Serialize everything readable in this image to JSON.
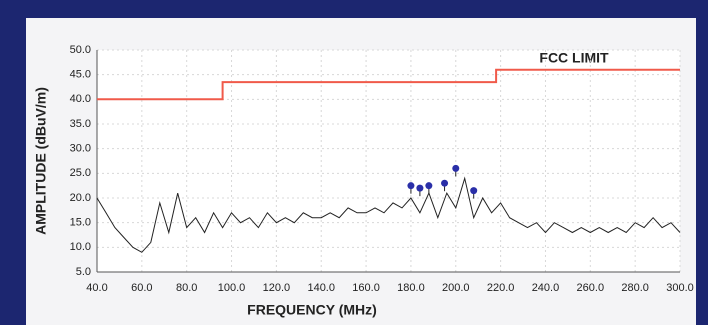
{
  "chart_data": {
    "type": "line",
    "ylabel": "AMPLITUDE (dBuV/m)",
    "xlabel": "FREQUENCY (MHz)",
    "annotation": "FCC LIMIT",
    "xlim": [
      40,
      300
    ],
    "xticks": [
      {
        "value": 40,
        "label": "40.0"
      },
      {
        "value": 60,
        "label": "60.0"
      },
      {
        "value": 80,
        "label": "80.0"
      },
      {
        "value": 100,
        "label": "100.0"
      },
      {
        "value": 120,
        "label": "120.0"
      },
      {
        "value": 140,
        "label": "140.0"
      },
      {
        "value": 160,
        "label": "160.0"
      },
      {
        "value": 180,
        "label": "180.0"
      },
      {
        "value": 200,
        "label": "200.0"
      },
      {
        "value": 220,
        "label": "220.0"
      },
      {
        "value": 240,
        "label": "240.0"
      },
      {
        "value": 260,
        "label": "260.0"
      },
      {
        "value": 280,
        "label": "280.0"
      },
      {
        "value": 300,
        "label": "300.0"
      }
    ],
    "ylim": [
      5,
      50
    ],
    "yticks": [
      {
        "value": 5,
        "label": "5.0"
      },
      {
        "value": 10,
        "label": "10.0"
      },
      {
        "value": 15,
        "label": "15.0"
      },
      {
        "value": 20,
        "label": "20.0"
      },
      {
        "value": 25,
        "label": "25.0"
      },
      {
        "value": 30,
        "label": "30.0"
      },
      {
        "value": 35,
        "label": "35.0"
      },
      {
        "value": 40,
        "label": "40.0"
      },
      {
        "value": 45,
        "label": "45.0"
      },
      {
        "value": 50,
        "label": "50.0"
      }
    ],
    "grid": true,
    "series": [
      {
        "kind": "line",
        "color": "#222222",
        "x": [
          40,
          44,
          48,
          52,
          56,
          60,
          64,
          68,
          72,
          76,
          80,
          84,
          88,
          92,
          96,
          100,
          104,
          108,
          112,
          116,
          120,
          124,
          128,
          132,
          136,
          140,
          144,
          148,
          152,
          156,
          160,
          164,
          168,
          172,
          176,
          180,
          184,
          188,
          192,
          196,
          200,
          204,
          208,
          212,
          216,
          220,
          224,
          228,
          232,
          236,
          240,
          244,
          248,
          252,
          256,
          260,
          264,
          268,
          272,
          276,
          280,
          284,
          288,
          292,
          296,
          300
        ],
        "values": [
          20,
          17,
          14,
          12,
          10,
          9,
          11,
          19,
          13,
          21,
          14,
          16,
          13,
          17,
          14,
          17,
          15,
          16,
          14,
          17,
          15,
          16,
          15,
          17,
          16,
          16,
          17,
          16,
          18,
          17,
          17,
          18,
          17,
          19,
          18,
          20,
          17,
          21,
          16,
          21,
          18,
          24,
          16,
          20,
          17,
          19,
          16,
          15,
          14,
          15,
          13,
          15,
          14,
          13,
          14,
          13,
          14,
          13,
          14,
          13,
          15,
          14,
          16,
          14,
          15,
          13
        ]
      },
      {
        "kind": "line",
        "color": "#f05a4a",
        "x": [
          40,
          96,
          96,
          218,
          218,
          300
        ],
        "values": [
          40,
          40,
          43.5,
          43.5,
          46,
          46
        ]
      },
      {
        "kind": "scatter",
        "color": "#2a2fa8",
        "x": [
          180,
          184,
          188,
          195,
          200,
          208
        ],
        "values": [
          22.5,
          22,
          22.5,
          23,
          26,
          21.5
        ]
      }
    ]
  }
}
